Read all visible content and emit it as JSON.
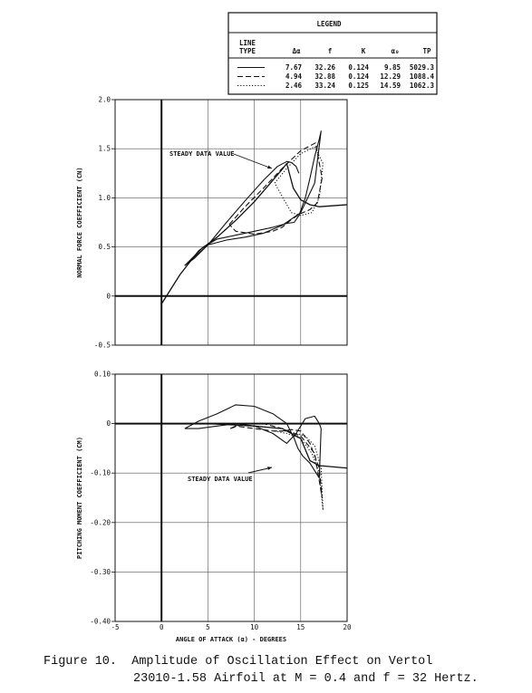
{
  "caption": {
    "line1": "Figure 10.  Amplitude of Oscillation Effect on Vertol",
    "line2": "23010-1.58 Airfoil at M = 0.4 and f = 32 Hertz."
  },
  "legend": {
    "title": "LEGEND",
    "headers": [
      "LINE TYPE",
      "Δα",
      "f",
      "K",
      "α₀",
      "TP"
    ],
    "rows": [
      {
        "line_type": "solid",
        "values": [
          "7.67",
          "32.26",
          "0.124",
          "9.85",
          "5029.3"
        ]
      },
      {
        "line_type": "dashed",
        "values": [
          "4.94",
          "32.88",
          "0.124",
          "12.29",
          "1088.4"
        ]
      },
      {
        "line_type": "dotted",
        "values": [
          "2.46",
          "33.24",
          "0.125",
          "14.59",
          "1062.3"
        ]
      }
    ]
  },
  "chart_data": [
    {
      "type": "line",
      "ylabel": "NORMAL FORCE COEFFICIENT (CN)",
      "xlim": [
        -5,
        20
      ],
      "ylim": [
        -0.5,
        2.0
      ],
      "x_ticks": [
        -5,
        0,
        5,
        10,
        15,
        20
      ],
      "y_ticks": [
        -0.5,
        0,
        0.5,
        1.0,
        1.5,
        2.0
      ],
      "y_tick_labels": [
        "-0.5",
        "0",
        "0.5",
        "1.0",
        "1.5",
        "2.0"
      ],
      "grid": true,
      "annotation": "STEADY DATA VALUE",
      "series": [
        {
          "line_type": "steady",
          "x": [
            0,
            2,
            4,
            6,
            8,
            10,
            12,
            13,
            13.5,
            14.2,
            15,
            16,
            17,
            20
          ],
          "y": [
            -0.08,
            0.22,
            0.46,
            0.6,
            0.77,
            0.96,
            1.18,
            1.29,
            1.35,
            1.1,
            0.98,
            0.93,
            0.91,
            0.93
          ]
        },
        {
          "line_type": "solid",
          "x": [
            2.5,
            3.5,
            5,
            7,
            9,
            11,
            13,
            15,
            16.5,
            17.2,
            17.0,
            16.5,
            16,
            15.5,
            14.8,
            14.3,
            13.5,
            12,
            10,
            8,
            6,
            4.5,
            2.5
          ],
          "y": [
            0.31,
            0.38,
            0.52,
            0.57,
            0.6,
            0.64,
            0.72,
            0.85,
            1.15,
            1.68,
            1.6,
            1.42,
            1.2,
            1.0,
            0.82,
            0.75,
            0.74,
            0.7,
            0.66,
            0.62,
            0.58,
            0.5,
            0.31
          ]
        },
        {
          "line_type": "solid",
          "x": [
            2.5,
            5,
            7,
            9,
            11,
            12.5,
            13.5,
            14.0,
            14.5,
            14.8
          ],
          "y": [
            0.31,
            0.52,
            0.75,
            0.97,
            1.18,
            1.32,
            1.37,
            1.36,
            1.32,
            1.25
          ]
        },
        {
          "line_type": "dashed",
          "x": [
            7.3,
            9,
            11,
            13,
            15,
            16.6,
            17.3,
            16.8,
            16,
            15,
            14,
            13,
            12,
            10,
            8,
            7.3
          ],
          "y": [
            0.73,
            0.91,
            1.1,
            1.3,
            1.48,
            1.56,
            1.2,
            0.95,
            0.88,
            0.84,
            0.78,
            0.7,
            0.66,
            0.63,
            0.66,
            0.73
          ]
        },
        {
          "line_type": "dotted",
          "x": [
            12.2,
            13.5,
            15,
            16.5,
            17.4,
            17.0,
            16.2,
            15,
            14,
            13.2,
            12.2
          ],
          "y": [
            1.15,
            1.3,
            1.45,
            1.52,
            1.35,
            1.0,
            0.85,
            0.82,
            0.85,
            0.98,
            1.15
          ]
        }
      ]
    },
    {
      "type": "line",
      "xlabel": "ANGLE OF ATTACK (α) - DEGREES",
      "ylabel": "PITCHING MOMENT COEFFICIENT (CM)",
      "xlim": [
        -5,
        20
      ],
      "ylim": [
        -0.4,
        0.1
      ],
      "x_ticks": [
        -5,
        0,
        5,
        10,
        15,
        20
      ],
      "x_tick_labels": [
        "-5",
        "0",
        "5",
        "10",
        "15",
        "20"
      ],
      "y_ticks": [
        -0.4,
        -0.3,
        -0.2,
        -0.1,
        0,
        0.1
      ],
      "y_tick_labels": [
        "-0.40",
        "-0.30",
        "-0.20",
        "-0.10",
        "0",
        "0.10"
      ],
      "grid": true,
      "annotation": "STEADY DATA VALUE",
      "series": [
        {
          "line_type": "steady",
          "x": [
            -5,
            0,
            5,
            10,
            13,
            15,
            16,
            17,
            20
          ],
          "y": [
            0.0,
            0.0,
            0.0,
            -0.005,
            -0.01,
            -0.03,
            -0.075,
            -0.085,
            -0.09
          ]
        },
        {
          "line_type": "solid",
          "x": [
            2.5,
            4,
            6,
            8,
            10,
            12,
            13.5,
            14.3,
            14.7,
            15.2,
            16,
            17,
            17.2,
            17.0,
            16.5,
            15.5,
            14.5,
            13.5,
            12,
            10,
            8,
            6,
            4,
            2.5
          ],
          "y": [
            -0.01,
            0.005,
            0.02,
            0.038,
            0.035,
            0.02,
            0.0,
            -0.03,
            -0.05,
            -0.065,
            -0.08,
            -0.11,
            -0.01,
            0.0,
            0.015,
            0.01,
            -0.02,
            -0.04,
            -0.02,
            -0.005,
            0.0,
            -0.005,
            -0.01,
            -0.01
          ]
        },
        {
          "line_type": "dashed",
          "x": [
            7.4,
            9,
            11,
            13,
            15,
            16.5,
            17.3,
            17.0,
            16.0,
            15.0,
            14.0,
            13.0,
            12.0,
            10.0,
            8.0,
            7.4
          ],
          "y": [
            -0.01,
            0.0,
            0.0,
            -0.01,
            -0.025,
            -0.06,
            -0.15,
            -0.09,
            -0.04,
            -0.015,
            -0.012,
            -0.015,
            -0.015,
            -0.01,
            -0.005,
            -0.01
          ]
        },
        {
          "line_type": "dotted",
          "x": [
            12.2,
            13.5,
            15,
            16.2,
            17.0,
            17.4,
            17.2,
            16.5,
            15.5,
            14.5,
            13.5,
            12.2
          ],
          "y": [
            -0.015,
            -0.02,
            -0.03,
            -0.06,
            -0.1,
            -0.175,
            -0.09,
            -0.045,
            -0.025,
            -0.02,
            -0.015,
            -0.015
          ]
        }
      ]
    }
  ]
}
